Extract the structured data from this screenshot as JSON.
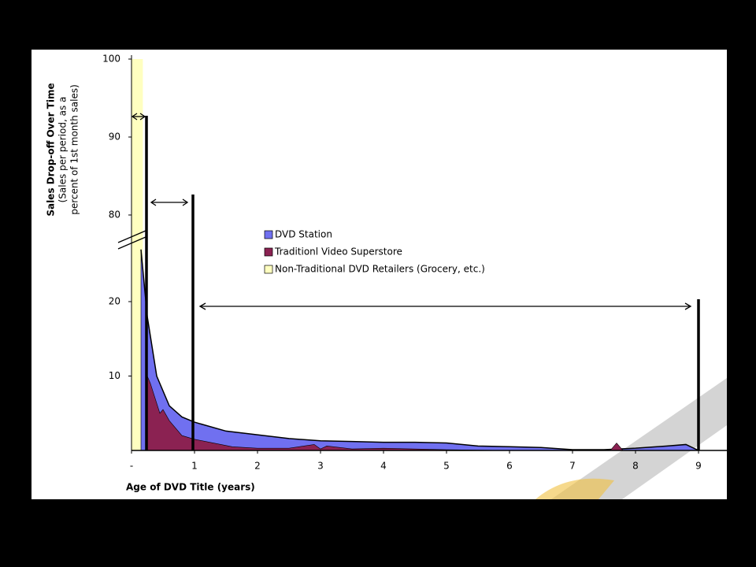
{
  "chart_data": {
    "type": "area",
    "y_title": "Sales Drop-off Over Time",
    "y_subtitle": [
      "(Sales per period, as a",
      "percent of 1st month sales)"
    ],
    "x_title": "Age of DVD Title (years)",
    "xlim": [
      0,
      9.45
    ],
    "xticks": [
      {
        "value": 0,
        "label": "-"
      },
      1,
      2,
      3,
      4,
      5,
      6,
      7,
      8,
      9
    ],
    "ylim": [
      0,
      100
    ],
    "yticks": [
      10,
      20,
      80,
      90,
      100
    ],
    "series": [
      {
        "name": "Non-Traditional DVD Retailers (Grocery, etc.)",
        "color": "#ffffc0",
        "x": [
          0,
          0.18
        ],
        "values": [
          100,
          100
        ]
      },
      {
        "name": "DVD Station",
        "color": "#7070f0",
        "x": [
          0.15,
          0.25,
          0.4,
          0.6,
          0.8,
          1,
          1.5,
          2,
          2.5,
          3,
          3.5,
          4,
          4.5,
          5,
          5.5,
          6,
          6.5,
          7,
          7.5,
          8,
          8.5,
          8.8,
          9
        ],
        "values": [
          27,
          18,
          10,
          6,
          4.5,
          3.8,
          2.6,
          2.1,
          1.6,
          1.3,
          1.2,
          1.1,
          1.1,
          1,
          0.6,
          0.5,
          0.4,
          0.1,
          0.1,
          0.3,
          0.6,
          0.8,
          0
        ]
      },
      {
        "name": "Traditionl Video Superstore",
        "color": "#8b2252",
        "x": [
          0.25,
          0.3,
          0.45,
          0.5,
          0.6,
          0.8,
          1,
          1.3,
          1.6,
          2,
          2.5,
          2.9,
          3,
          3.1,
          3.5,
          4,
          5,
          6,
          7,
          7.6,
          7.7,
          7.8,
          9
        ],
        "values": [
          10,
          9,
          5,
          5.5,
          4,
          2,
          1.5,
          1,
          0.5,
          0.3,
          0.3,
          0.8,
          0.2,
          0.6,
          0.2,
          0.3,
          0.1,
          0,
          0,
          0,
          1,
          0,
          0
        ]
      }
    ],
    "legend_order": [
      1,
      2,
      0
    ]
  }
}
